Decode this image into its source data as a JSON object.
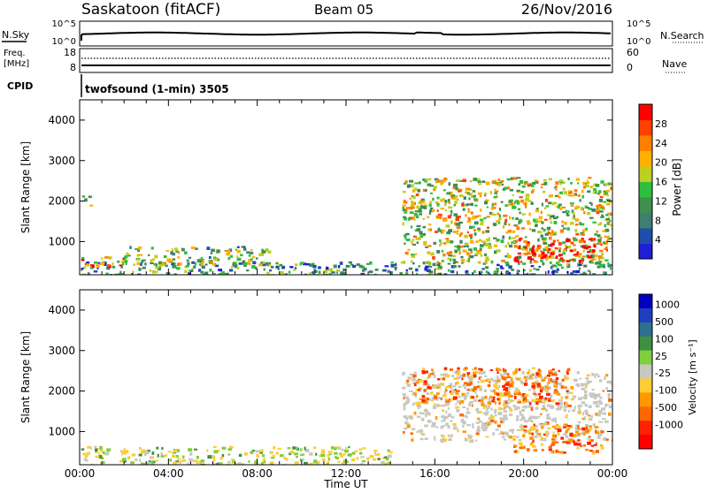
{
  "header": {
    "station": "Saskatoon (fitACF)",
    "beam": "Beam 05",
    "date": "26/Nov/2016"
  },
  "status_panel": {
    "nsky_label": "N.Sky",
    "nsearch_label": "N.Search",
    "freq_label_1": "Freq.",
    "freq_label_2": "[MHz]",
    "nave_label": "Nave",
    "cpid_label": "CPID",
    "cpid_value": "twofsound (1-min) 3505",
    "noise_left_ticks": [
      "10^5",
      "10^0"
    ],
    "noise_right_ticks": [
      "10^5",
      "10^0"
    ],
    "freq_left_ticks": [
      "18",
      "8"
    ],
    "freq_right_ticks": [
      "60",
      "0"
    ]
  },
  "colors": {
    "power_scale": [
      "#1f1fd6",
      "#1f4fa8",
      "#3f7f6f",
      "#3f8f4f",
      "#2fbf3f",
      "#bfcf1f",
      "#ffb000",
      "#ff7f00",
      "#ff4000",
      "#ff0000"
    ],
    "velocity_scale": [
      "#0000c0",
      "#1f3fbf",
      "#2f6f8f",
      "#3f8f3f",
      "#7fd03f",
      "#c8c8c0",
      "#ffcc33",
      "#ff9900",
      "#ff6600",
      "#ff2200",
      "#ff0000"
    ]
  },
  "chart_data": [
    {
      "type": "heatmap",
      "name": "power",
      "ylabel": "Slant Range [km]",
      "y_ticks": [
        1000,
        2000,
        3000,
        4000
      ],
      "ylim": [
        180,
        4500
      ],
      "x_ticks": [
        "00:00",
        "04:00",
        "08:00",
        "12:00",
        "16:00",
        "20:00",
        "00:00"
      ],
      "xlim_hours": [
        0,
        24
      ],
      "colorbar": {
        "label": "Power [dB]",
        "ticks": [
          "4",
          "8",
          "12",
          "16",
          "20",
          "24",
          "28"
        ]
      },
      "features": [
        {
          "desc": "near-range scatter",
          "t0": 0,
          "t1": 24,
          "r0": 180,
          "r1": 520,
          "level": 0.3
        },
        {
          "desc": "early echoes",
          "t0": 0,
          "t1": 2,
          "r0": 400,
          "r1": 650,
          "level": 0.75
        },
        {
          "desc": "isolated echo",
          "t0": 0.1,
          "t1": 0.5,
          "r0": 1900,
          "r1": 2150,
          "level": 0.35
        },
        {
          "desc": "morning band",
          "t0": 2,
          "t1": 8.5,
          "r0": 450,
          "r1": 900,
          "level": 0.45
        },
        {
          "desc": "afternoon echoes",
          "t0": 14.5,
          "t1": 24,
          "r0": 500,
          "r1": 2600,
          "level": 0.55
        },
        {
          "desc": "strong evening patch",
          "t0": 19.5,
          "t1": 23.2,
          "r0": 500,
          "r1": 1100,
          "level": 0.95
        }
      ]
    },
    {
      "type": "heatmap",
      "name": "velocity",
      "ylabel": "Slant Range [km]",
      "y_ticks": [
        1000,
        2000,
        3000,
        4000
      ],
      "ylim": [
        180,
        4500
      ],
      "x_ticks": [
        "00:00",
        "04:00",
        "08:00",
        "12:00",
        "16:00",
        "20:00",
        "00:00"
      ],
      "xlim_hours": [
        0,
        24
      ],
      "xlabel": "Time UT",
      "colorbar": {
        "label": "Velocity [m s⁻¹]",
        "ticks": [
          "1000",
          "500",
          "100",
          "25",
          "-25",
          "-100",
          "-500",
          "-1000"
        ]
      },
      "features": [
        {
          "desc": "near-range mixed",
          "t0": 0,
          "t1": 14,
          "r0": 180,
          "r1": 650,
          "level": "mixed"
        },
        {
          "desc": "ground scatter arc",
          "t0": 14.5,
          "t1": 24,
          "r0": 800,
          "r1": 2500,
          "level": "grey"
        },
        {
          "desc": "negative velocity patches",
          "t0": 15,
          "t1": 22,
          "r0": 1700,
          "r1": 2600,
          "level": "orange"
        },
        {
          "desc": "evening negative flows",
          "t0": 19.5,
          "t1": 23.5,
          "r0": 500,
          "r1": 1200,
          "level": "orange"
        }
      ]
    }
  ]
}
